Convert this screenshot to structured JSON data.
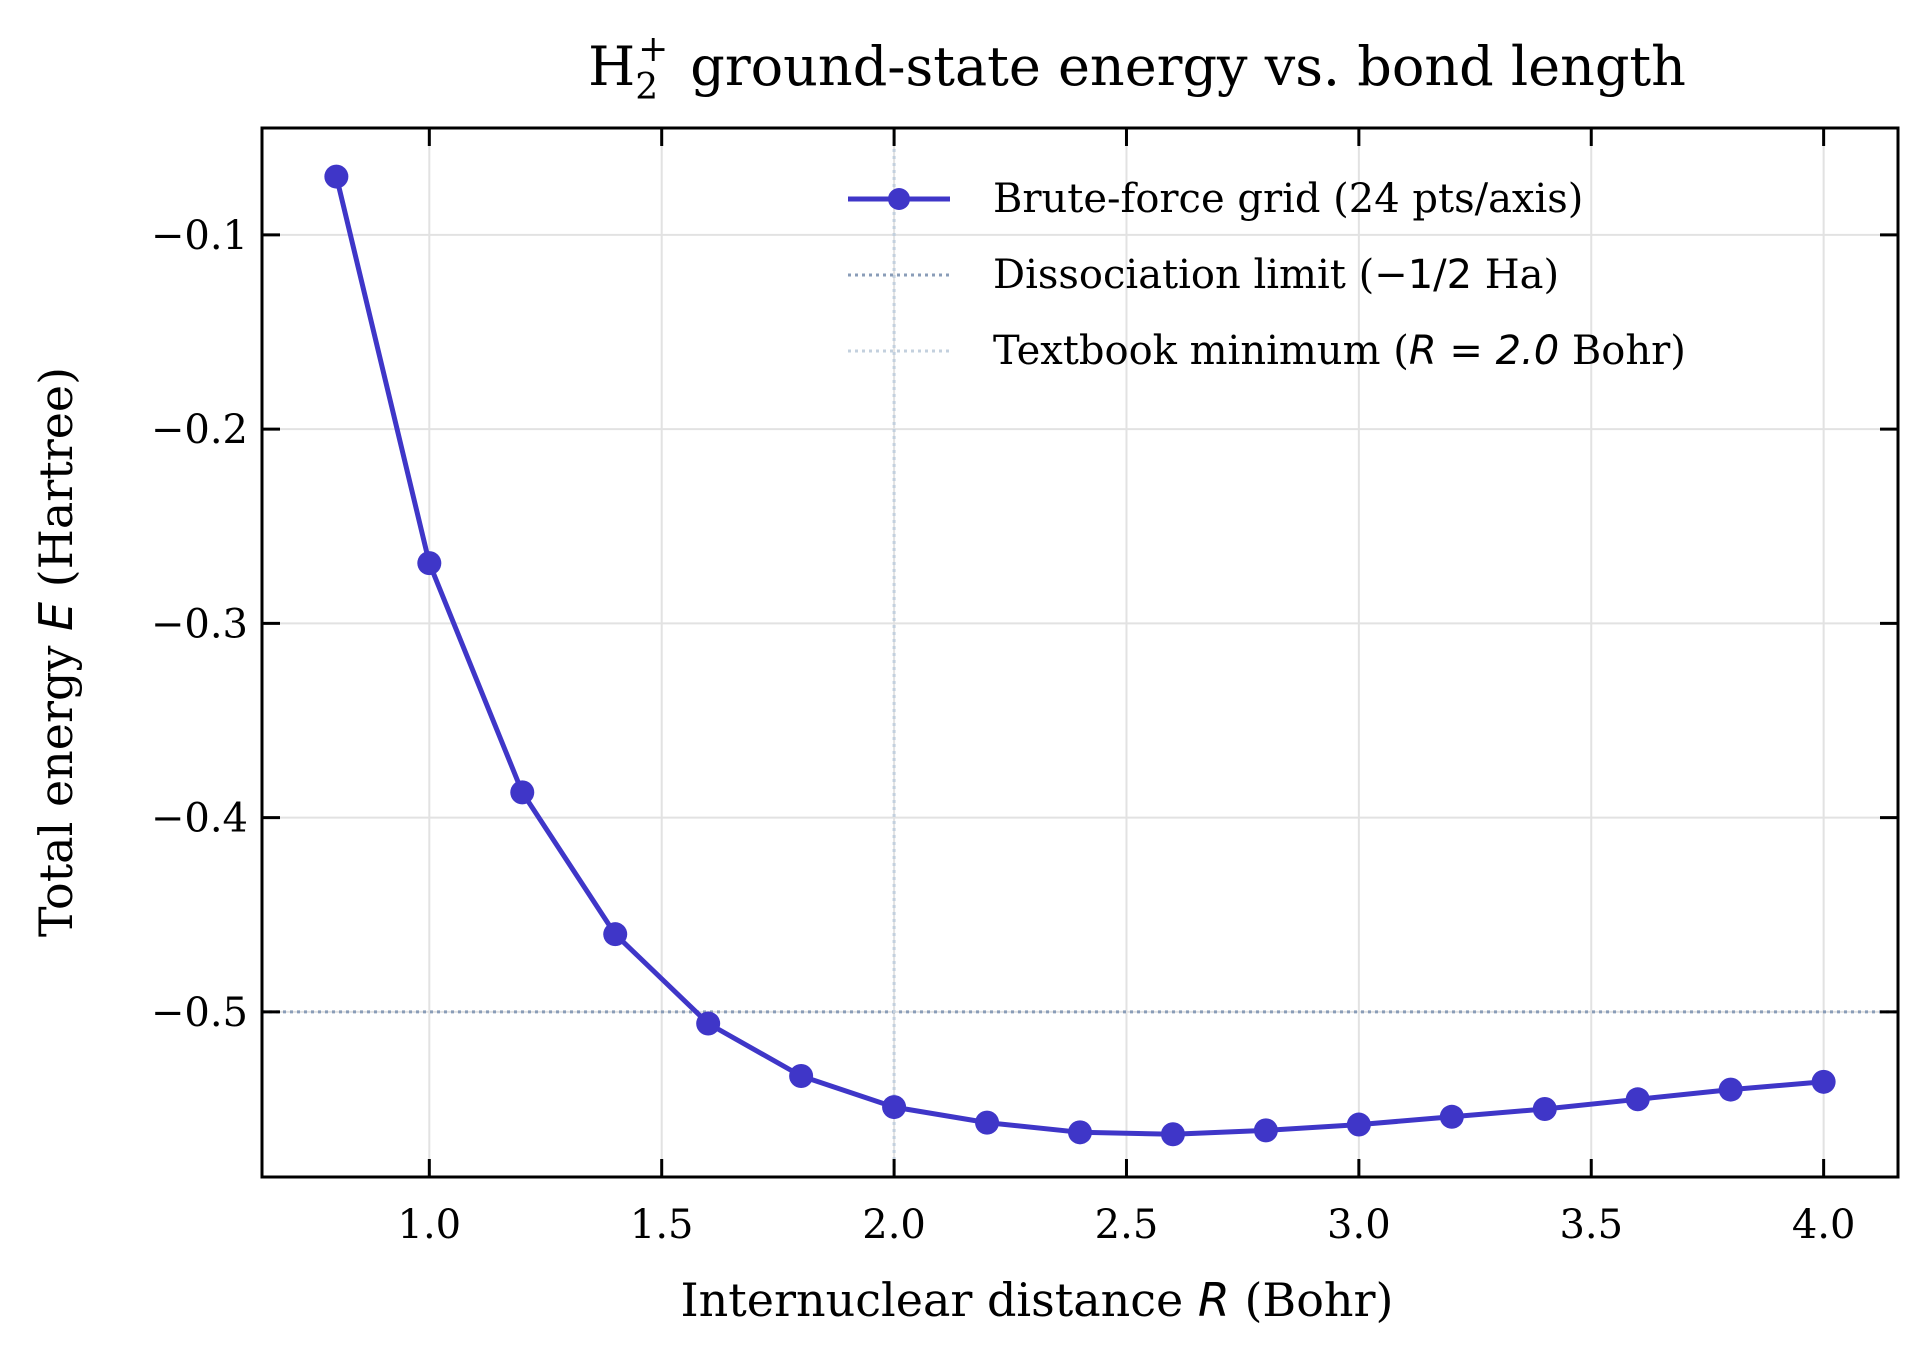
{
  "chart_data": {
    "type": "line",
    "title": {
      "prefix": "H",
      "subscript": "2",
      "superscript": "+",
      "rest": "ground-state energy vs. bond length"
    },
    "xlabel": {
      "pre": "Internuclear distance ",
      "var": "R",
      "post": " (Bohr)"
    },
    "ylabel": {
      "pre": "Total energy ",
      "var": "E",
      "post": " (Hartree)"
    },
    "xlim": [
      0.64,
      4.16
    ],
    "ylim": [
      -0.585,
      -0.045
    ],
    "xticks": [
      1.0,
      1.5,
      2.0,
      2.5,
      3.0,
      3.5,
      4.0
    ],
    "xtick_labels": [
      "1.0",
      "1.5",
      "2.0",
      "2.5",
      "3.0",
      "3.5",
      "4.0"
    ],
    "yticks": [
      -0.1,
      -0.2,
      -0.3,
      -0.4,
      -0.5
    ],
    "ytick_labels": [
      "−0.1",
      "−0.2",
      "−0.3",
      "−0.4",
      "−0.5"
    ],
    "grid": true,
    "legend_position": "top-right",
    "series": [
      {
        "name": "Brute-force grid (24 pts/axis)",
        "color": "#3f36c8",
        "x": [
          0.8,
          1.0,
          1.2,
          1.4,
          1.6,
          1.8,
          2.0,
          2.2,
          2.4,
          2.6,
          2.8,
          3.0,
          3.2,
          3.4,
          3.6,
          3.8,
          4.0
        ],
        "y": [
          -0.07,
          -0.269,
          -0.387,
          -0.46,
          -0.506,
          -0.533,
          -0.549,
          -0.557,
          -0.562,
          -0.563,
          -0.561,
          -0.558,
          -0.554,
          -0.55,
          -0.545,
          -0.54,
          -0.536
        ]
      }
    ],
    "reference_lines": [
      {
        "orientation": "horizontal",
        "value": -0.5,
        "color": "#8a9db8",
        "legend": {
          "pre": "Dissociation limit (",
          "math": "−1/2",
          "post": " Ha)"
        }
      },
      {
        "orientation": "vertical",
        "value": 2.0,
        "color": "#c3d0de",
        "legend": {
          "pre": "Textbook minimum (",
          "math": "R = 2.0",
          "post": " Bohr)"
        }
      }
    ]
  }
}
